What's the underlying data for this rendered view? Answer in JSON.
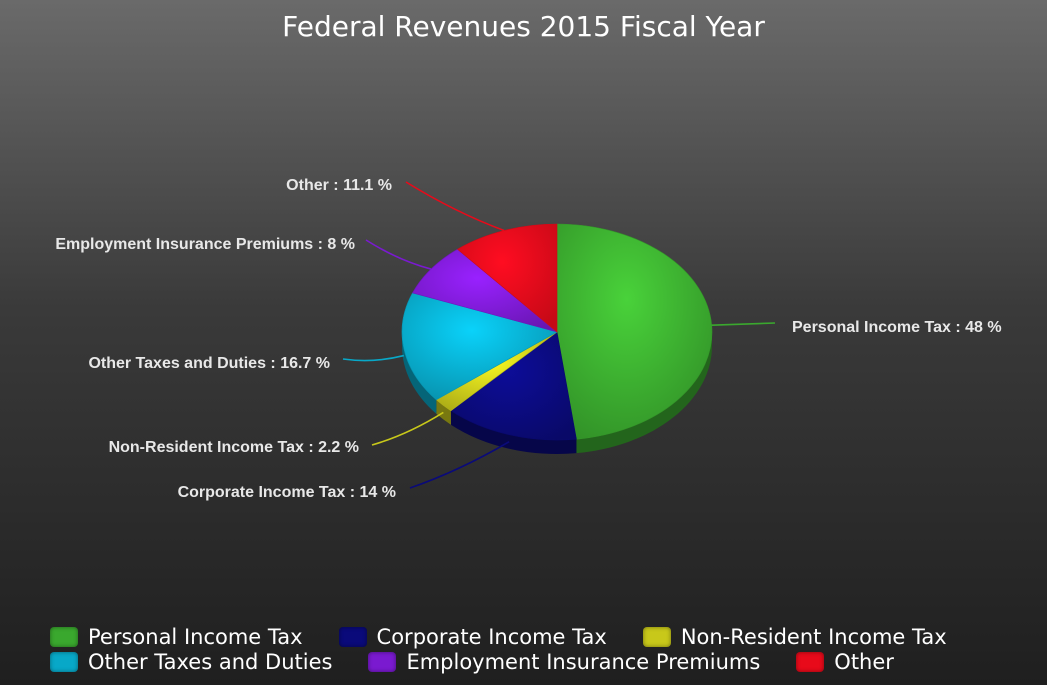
{
  "chart_data": {
    "type": "pie",
    "title": "Federal Revenues 2015 Fiscal Year",
    "slices": [
      {
        "name": "Personal Income Tax",
        "value": 48,
        "label": "Personal Income Tax : 48 %",
        "color": "#3aa82e"
      },
      {
        "name": "Corporate Income Tax",
        "value": 14,
        "label": "Corporate Income Tax : 14 %",
        "color": "#0a0a7a"
      },
      {
        "name": "Non-Resident Income Tax",
        "value": 2.2,
        "label": "Non-Resident Income Tax : 2.2 %",
        "color": "#c8c81a"
      },
      {
        "name": "Other Taxes and Duties",
        "value": 16.7,
        "label": "Other Taxes and Duties : 16.7 %",
        "color": "#08a8c8"
      },
      {
        "name": "Employment Insurance Premiums",
        "value": 8,
        "label": "Employment Insurance Premiums : 8 %",
        "color": "#7a1ad0"
      },
      {
        "name": "Other",
        "value": 11.1,
        "label": "Other : 11.1 %",
        "color": "#e80a1a"
      }
    ],
    "legend": {
      "placement": "bottom",
      "rows": [
        [
          "Personal Income Tax",
          "Corporate Income Tax",
          "Non-Resident Income Tax"
        ],
        [
          "Other Taxes and Duties",
          "Employment Insurance Premiums",
          "Other"
        ]
      ]
    }
  }
}
